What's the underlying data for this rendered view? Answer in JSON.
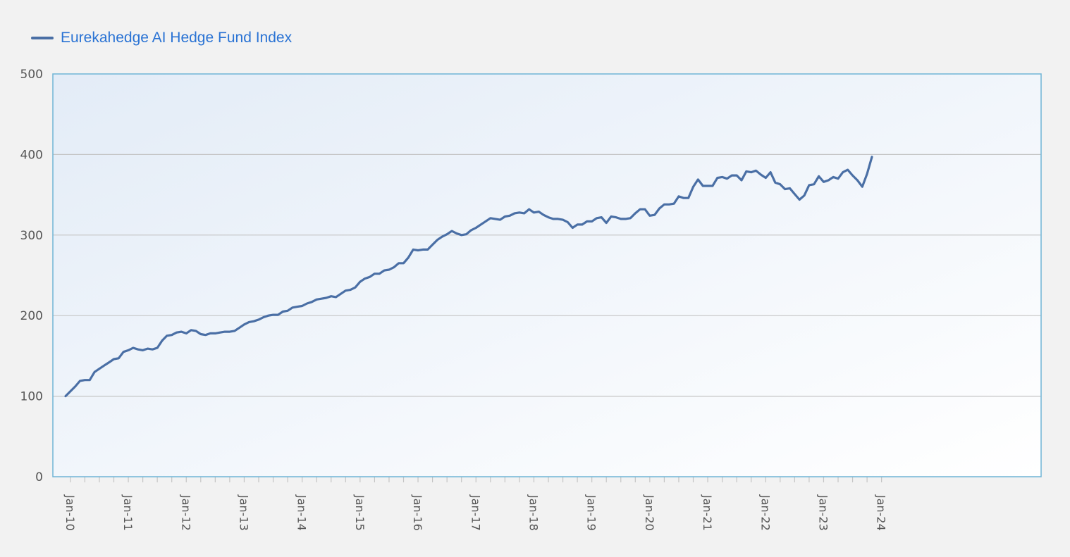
{
  "colors": {
    "series": "#4a6fa5",
    "legend_text": "#2a73d4",
    "grid": "#c4c4c4",
    "axis_label": "#555555",
    "plot_border": "#6fb4d6"
  },
  "chart_data": {
    "type": "line",
    "title": "",
    "xlabel": "",
    "ylabel": "",
    "ylim": [
      0,
      500
    ],
    "yticks": [
      0,
      100,
      200,
      300,
      400,
      500
    ],
    "xlim": [
      "2009-12",
      "2024-01"
    ],
    "xtick_labels": [
      "Jan-10",
      "Jan-11",
      "Jan-12",
      "Jan-13",
      "Jan-14",
      "Jan-15",
      "Jan-16",
      "Jan-17",
      "Jan-18",
      "Jan-19",
      "Jan-20",
      "Jan-21",
      "Jan-22",
      "Jan-23",
      "Jan-24"
    ],
    "grid": true,
    "legend": "top-left",
    "series": [
      {
        "name": "Eurekahedge AI Hedge Fund Index",
        "start": "2009-12",
        "frequency": "monthly",
        "values": [
          100,
          106,
          112,
          119,
          120,
          120,
          130,
          134,
          138,
          142,
          146,
          147,
          155,
          157,
          160,
          158,
          157,
          159,
          158,
          160,
          169,
          175,
          176,
          179,
          180,
          178,
          182,
          181,
          177,
          176,
          178,
          178,
          179,
          180,
          180,
          181,
          185,
          189,
          192,
          193,
          195,
          198,
          200,
          201,
          201,
          205,
          206,
          210,
          211,
          212,
          215,
          217,
          220,
          221,
          222,
          224,
          223,
          227,
          231,
          232,
          235,
          242,
          246,
          248,
          252,
          252,
          256,
          257,
          260,
          265,
          265,
          272,
          282,
          281,
          282,
          282,
          288,
          294,
          298,
          301,
          305,
          302,
          300,
          301,
          306,
          309,
          313,
          317,
          321,
          320,
          319,
          323,
          324,
          327,
          328,
          327,
          332,
          328,
          329,
          325,
          322,
          320,
          320,
          319,
          316,
          309,
          313,
          313,
          317,
          317,
          321,
          322,
          315,
          323,
          322,
          320,
          320,
          321,
          327,
          332,
          332,
          324,
          325,
          333,
          338,
          338,
          339,
          348,
          346,
          346,
          360,
          369,
          361,
          361,
          361,
          371,
          372,
          370,
          374,
          374,
          368,
          379,
          378,
          380,
          375,
          371,
          378,
          365,
          363,
          357,
          358,
          351,
          344,
          349,
          362,
          363,
          373,
          366,
          368,
          372,
          370,
          378,
          381,
          374,
          368,
          360,
          376,
          397
        ]
      }
    ]
  }
}
